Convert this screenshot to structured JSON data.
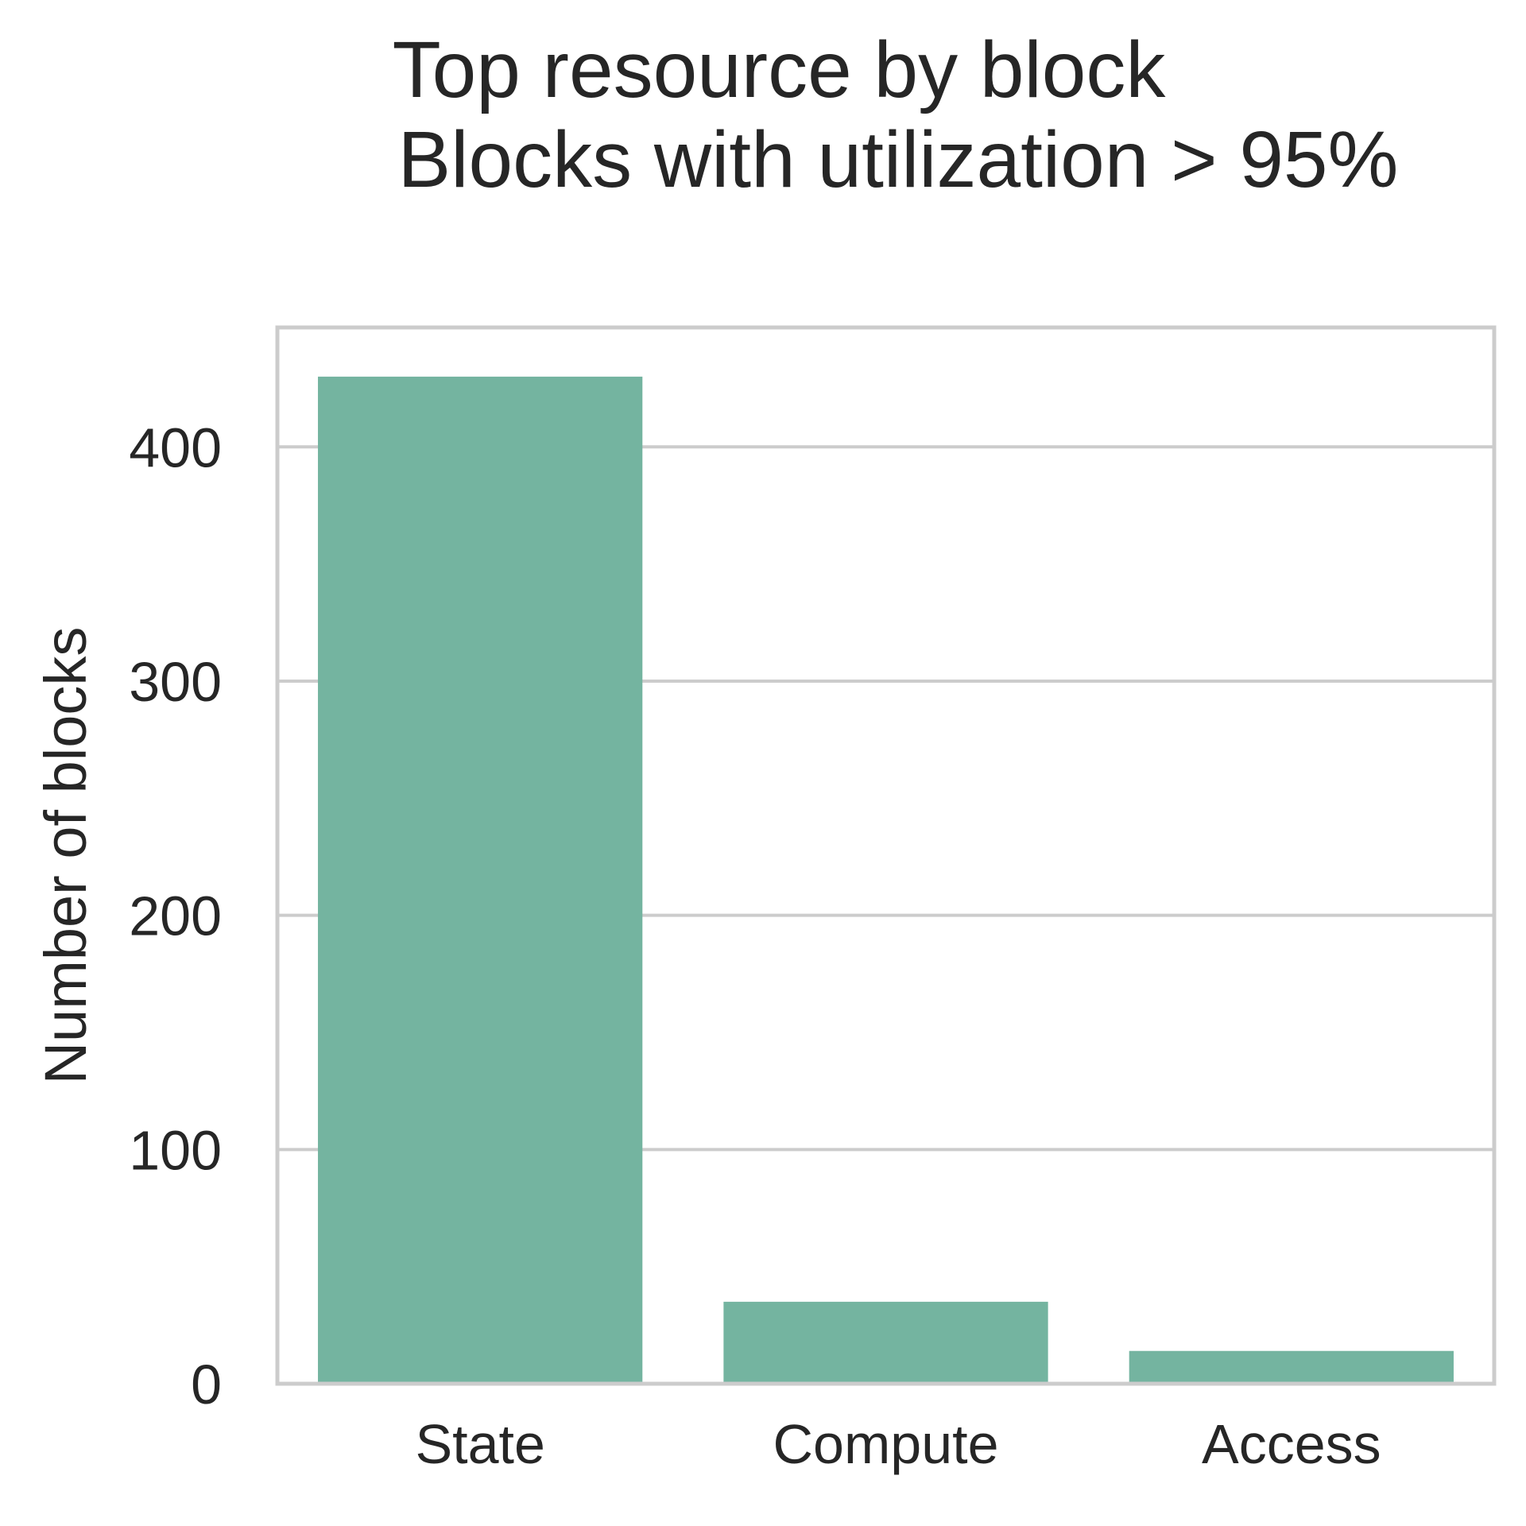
{
  "chart_data": {
    "type": "bar",
    "title": "Top resource by block",
    "subtitle": "Blocks with utilization > 95%",
    "xlabel": "",
    "ylabel": "Number of blocks",
    "categories": [
      "State",
      "Compute",
      "Access"
    ],
    "values": [
      430,
      35,
      14
    ],
    "ylim": [
      0,
      451
    ],
    "yticks": [
      0,
      100,
      200,
      300,
      400
    ],
    "ytick_labels": [
      "0",
      "100",
      "200",
      "300",
      "400"
    ],
    "grid": "horizontal",
    "legend": "none",
    "colors": {
      "bar": "#74b4a0",
      "grid": "#cccccc",
      "frame": "#cccccc",
      "text": "#262626"
    }
  }
}
